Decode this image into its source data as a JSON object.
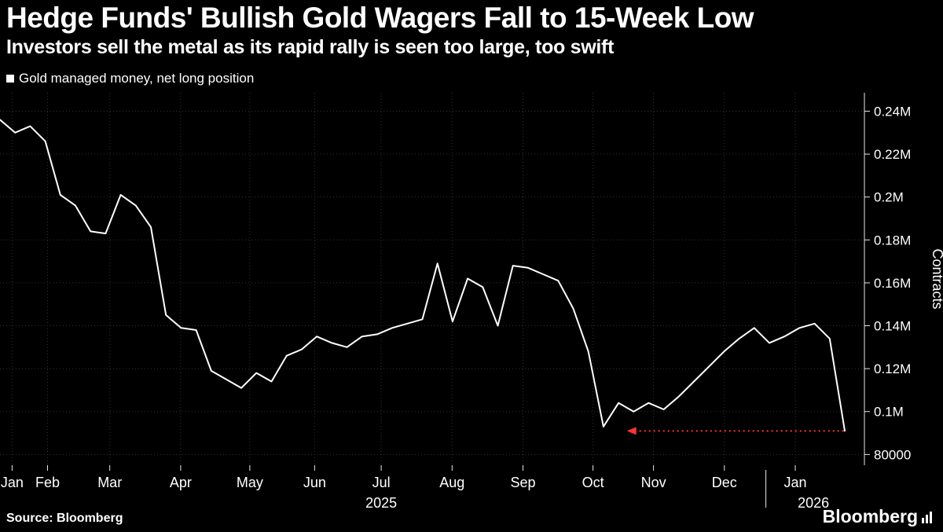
{
  "header": {
    "title": "Hedge Funds' Bullish Gold Wagers Fall to 15-Week Low",
    "subtitle": "Investors sell the metal as its rapid rally is seen too large, too swift"
  },
  "legend": {
    "label": "Gold managed money, net long position"
  },
  "footer": {
    "source": "Source:  Bloomberg",
    "brand": "Bloomberg"
  },
  "chart_data": {
    "type": "line",
    "title": "Gold managed money, net long position",
    "ylabel": "Contracts",
    "line_color": "#ffffff",
    "grid_color": "#333333",
    "axis_color": "#e8e8e8",
    "annotation_color": "#ff3532",
    "grid": true,
    "legend_position": "top-left",
    "ylim": [
      75000,
      248600
    ],
    "y_ticks": [
      {
        "label": "0.24M",
        "value": 240000
      },
      {
        "label": "0.22M",
        "value": 220000
      },
      {
        "label": "0.2M",
        "value": 200000
      },
      {
        "label": "0.18M",
        "value": 180000
      },
      {
        "label": "0.16M",
        "value": 160000
      },
      {
        "label": "0.14M",
        "value": 140000
      },
      {
        "label": "0.12M",
        "value": 120000
      },
      {
        "label": "0.1M",
        "value": 100000
      },
      {
        "label": "80000",
        "value": 80000
      }
    ],
    "x_ticks": [
      {
        "label": "Jan",
        "pos": 0.014
      },
      {
        "label": "Feb",
        "pos": 0.055
      },
      {
        "label": "Mar",
        "pos": 0.127
      },
      {
        "label": "Apr",
        "pos": 0.209
      },
      {
        "label": "May",
        "pos": 0.289
      },
      {
        "label": "Jun",
        "pos": 0.364
      },
      {
        "label": "Jul",
        "pos": 0.441
      },
      {
        "label": "Aug",
        "pos": 0.523
      },
      {
        "label": "Sep",
        "pos": 0.605
      },
      {
        "label": "Oct",
        "pos": 0.686
      },
      {
        "label": "Nov",
        "pos": 0.756
      },
      {
        "label": "Dec",
        "pos": 0.838
      },
      {
        "label": "Jan",
        "pos": 0.92
      }
    ],
    "year_labels": [
      {
        "label": "2025",
        "pos": 0.441
      },
      {
        "label": "2026",
        "pos": 0.941
      }
    ],
    "year_divider_pos": 0.886,
    "x_unit": "weekly, Jan 2025 - Jan 2026",
    "values": [
      236000,
      230000,
      233000,
      226000,
      201000,
      196000,
      184000,
      183000,
      201000,
      196000,
      186000,
      145000,
      139000,
      138000,
      119000,
      115000,
      111000,
      118000,
      114000,
      126000,
      129000,
      135000,
      132000,
      130000,
      135000,
      136000,
      139000,
      141000,
      143000,
      169000,
      142000,
      162000,
      158000,
      140000,
      168000,
      167000,
      164000,
      161000,
      148000,
      128000,
      93000,
      104000,
      100000,
      104000,
      101000,
      107000,
      114000,
      121000,
      128000,
      134000,
      139000,
      132000,
      135000,
      139000,
      141000,
      134000,
      91000
    ],
    "annotation": {
      "type": "dotted-horizontal-line-left-arrow",
      "value": 91000,
      "x_start_frac": 0.727,
      "x_end_frac": 0.977
    }
  }
}
